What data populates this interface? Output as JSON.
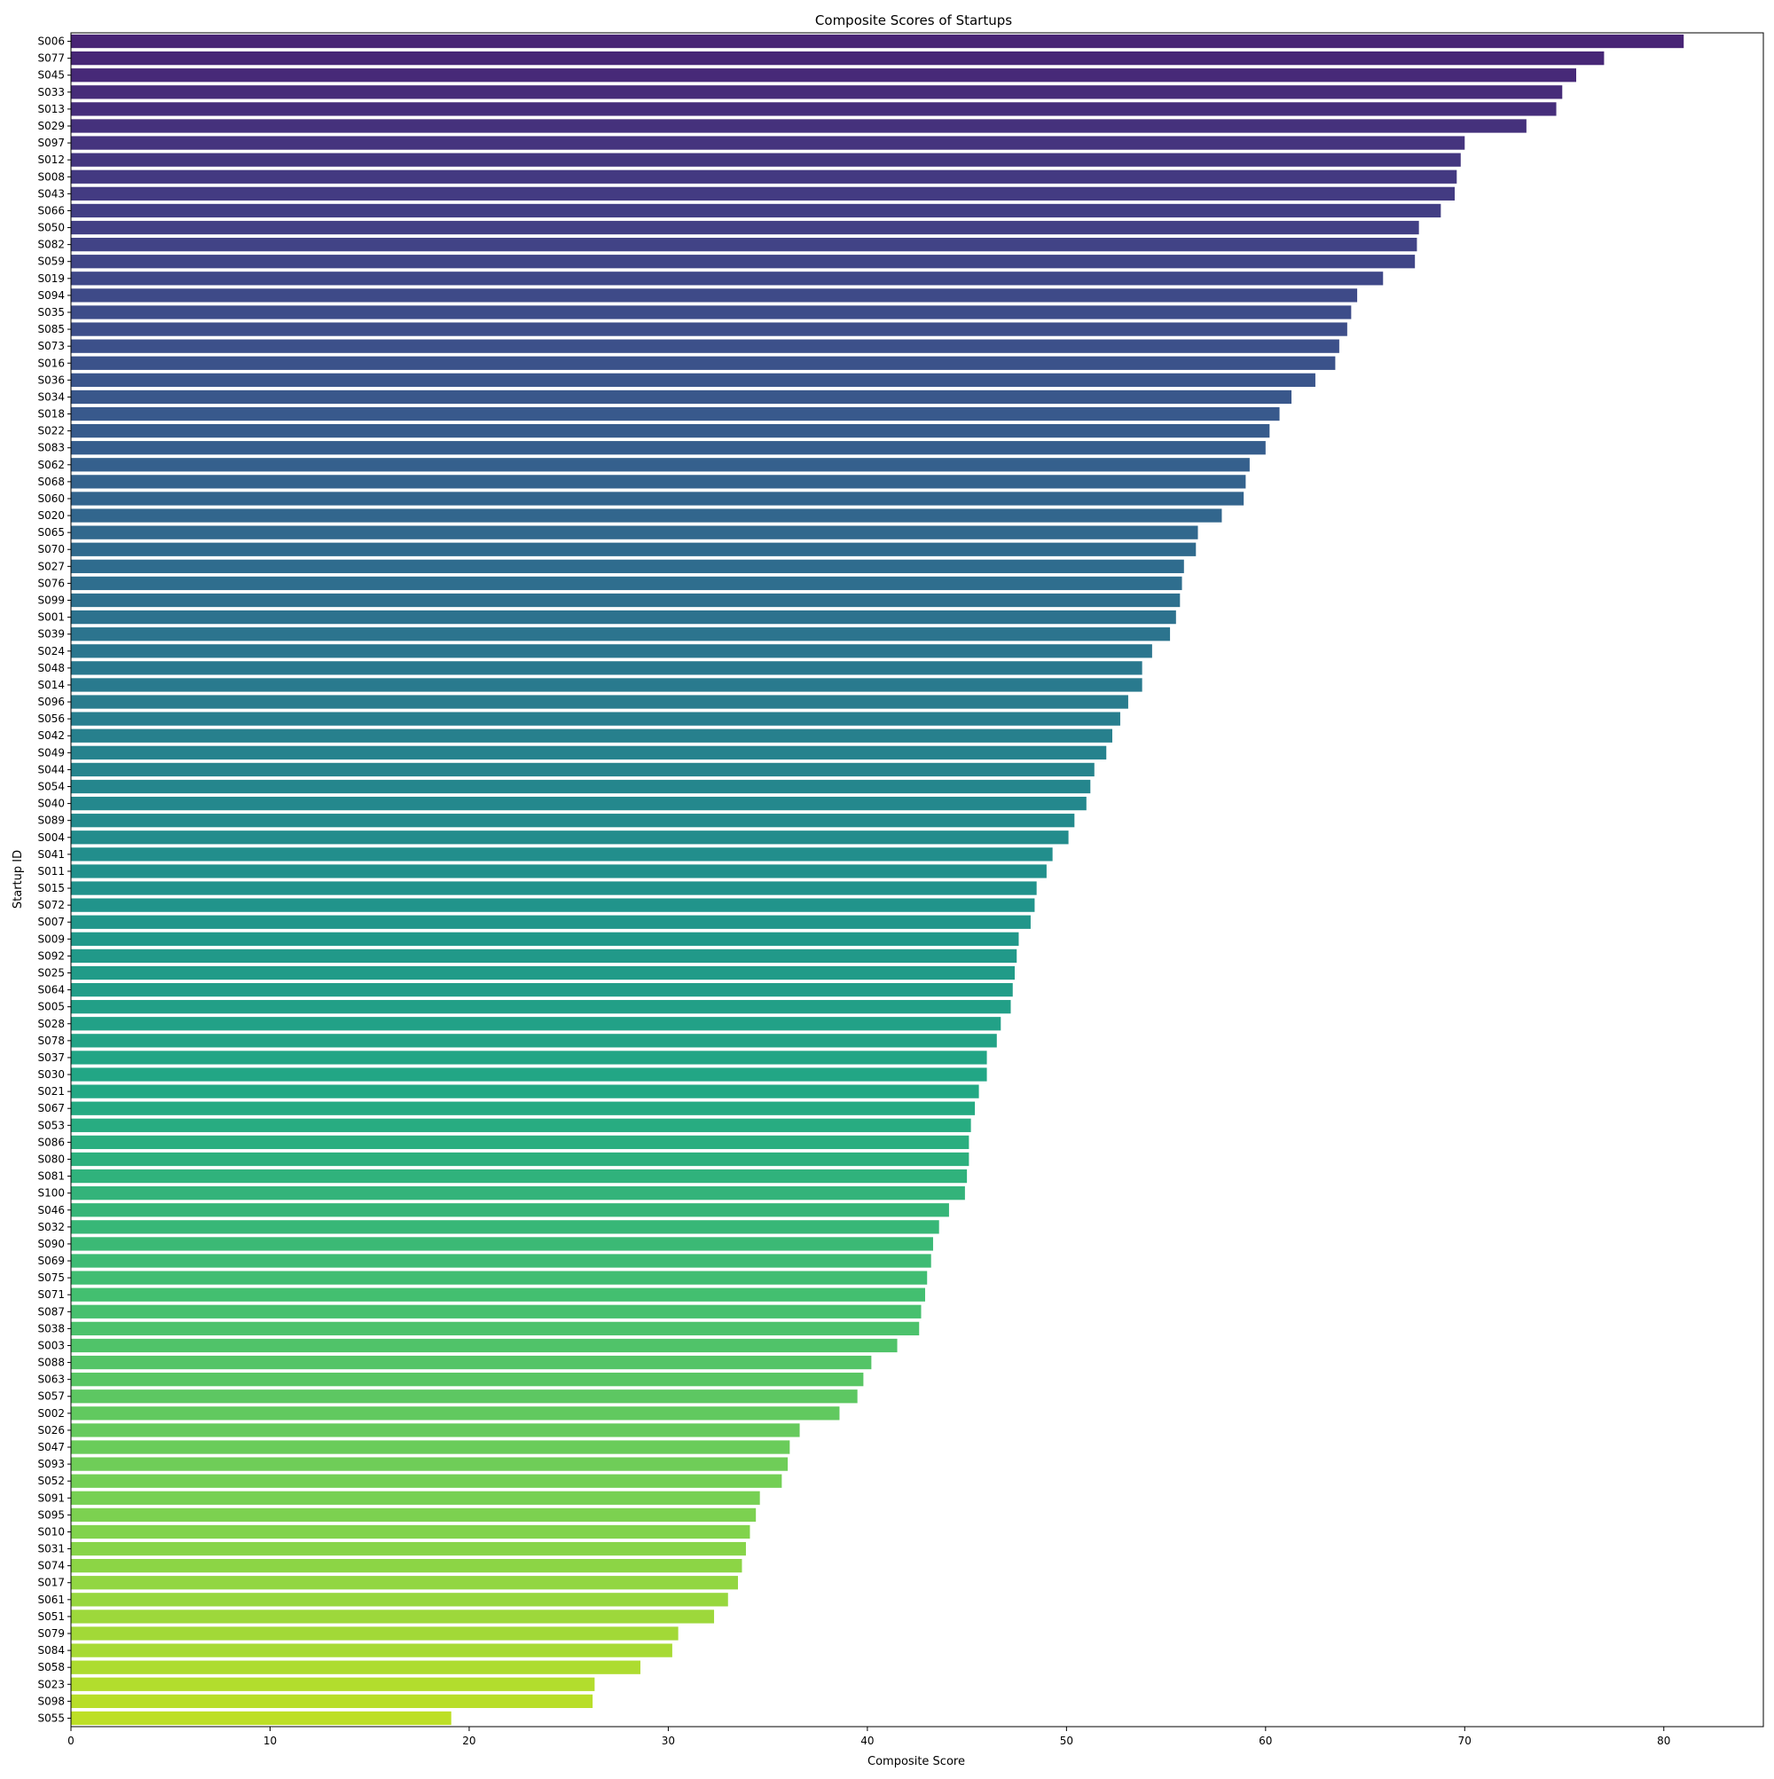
{
  "chart_data": {
    "type": "bar",
    "orientation": "horizontal",
    "title": "Composite Scores of Startups",
    "xlabel": "Composite Score",
    "ylabel": "Startup ID",
    "xlim": [
      0,
      85
    ],
    "xticks": [
      0,
      10,
      20,
      30,
      40,
      50,
      60,
      70,
      80
    ],
    "grid": false,
    "legend": "none",
    "palette": "viridis",
    "palette_start": "#440154",
    "palette_end": "#fde725",
    "categories": [
      "S006",
      "S077",
      "S045",
      "S033",
      "S013",
      "S029",
      "S097",
      "S012",
      "S008",
      "S043",
      "S066",
      "S050",
      "S082",
      "S059",
      "S019",
      "S094",
      "S035",
      "S085",
      "S073",
      "S016",
      "S036",
      "S034",
      "S018",
      "S022",
      "S083",
      "S062",
      "S068",
      "S060",
      "S020",
      "S065",
      "S070",
      "S027",
      "S076",
      "S099",
      "S001",
      "S039",
      "S024",
      "S048",
      "S014",
      "S096",
      "S056",
      "S042",
      "S049",
      "S044",
      "S054",
      "S040",
      "S089",
      "S004",
      "S041",
      "S011",
      "S015",
      "S072",
      "S007",
      "S009",
      "S092",
      "S025",
      "S064",
      "S005",
      "S028",
      "S078",
      "S037",
      "S030",
      "S021",
      "S067",
      "S053",
      "S086",
      "S080",
      "S081",
      "S100",
      "S046",
      "S032",
      "S090",
      "S069",
      "S075",
      "S071",
      "S087",
      "S038",
      "S003",
      "S088",
      "S063",
      "S057",
      "S002",
      "S026",
      "S047",
      "S093",
      "S052",
      "S091",
      "S095",
      "S010",
      "S031",
      "S074",
      "S017",
      "S061",
      "S051",
      "S079",
      "S084",
      "S058",
      "S023",
      "S098",
      "S055"
    ],
    "values": [
      81.0,
      77.0,
      75.6,
      74.9,
      74.6,
      73.1,
      70.0,
      69.8,
      69.6,
      69.5,
      68.8,
      67.7,
      67.6,
      67.5,
      65.9,
      64.6,
      64.3,
      64.1,
      63.7,
      63.5,
      62.5,
      61.3,
      60.7,
      60.2,
      60.0,
      59.2,
      59.0,
      58.9,
      57.8,
      56.6,
      56.5,
      55.9,
      55.8,
      55.7,
      55.5,
      55.2,
      54.3,
      53.8,
      53.8,
      53.1,
      52.7,
      52.3,
      52.0,
      51.4,
      51.2,
      51.0,
      50.4,
      50.1,
      49.3,
      49.0,
      48.5,
      48.4,
      48.2,
      47.6,
      47.5,
      47.4,
      47.3,
      47.2,
      46.7,
      46.5,
      46.0,
      46.0,
      45.6,
      45.4,
      45.2,
      45.1,
      45.1,
      45.0,
      44.9,
      44.1,
      43.6,
      43.3,
      43.2,
      43.0,
      42.9,
      42.7,
      42.6,
      41.5,
      40.2,
      39.8,
      39.5,
      38.6,
      36.6,
      36.1,
      36.0,
      35.7,
      34.6,
      34.4,
      34.1,
      33.9,
      33.7,
      33.5,
      33.0,
      32.3,
      30.5,
      30.2,
      28.6,
      26.3,
      26.2,
      19.1
    ]
  }
}
